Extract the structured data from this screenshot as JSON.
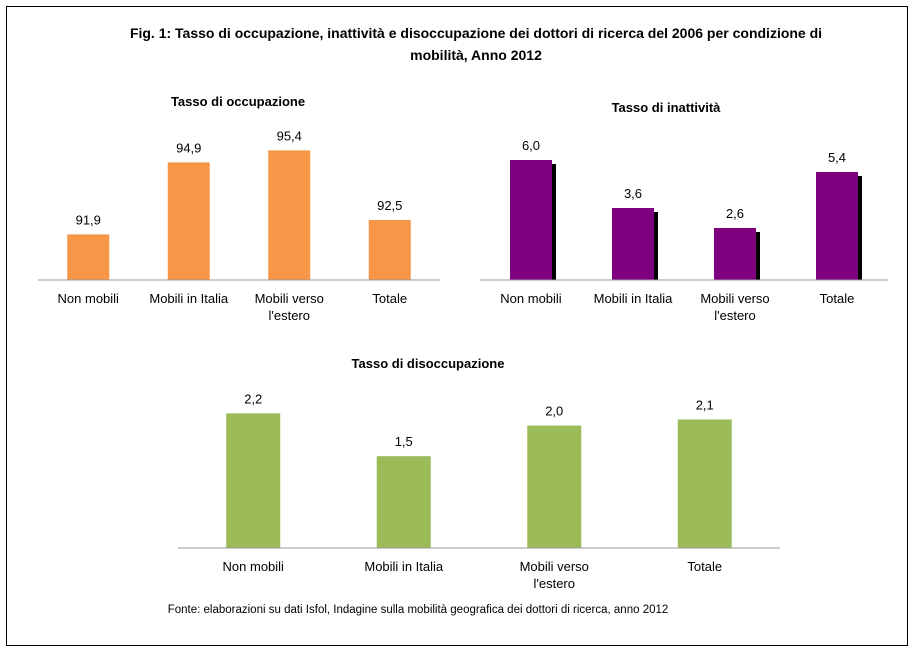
{
  "title": "Fig. 1: Tasso di occupazione, inattività e disoccupazione dei dottori di ricerca del 2006 per condizione di mobilità, Anno 2012",
  "source": "Fonte: elaborazioni su dati Isfol, Indagine sulla mobilità geografica dei dottori di ricerca, anno 2012",
  "chart_data": [
    {
      "type": "bar",
      "title": "Tasso di occupazione",
      "categories": [
        "Non mobili",
        "Mobili in Italia",
        "Mobili verso l'estero",
        "Totale"
      ],
      "values": [
        91.9,
        94.9,
        95.4,
        92.5
      ],
      "value_labels": [
        "91,9",
        "94,9",
        "95,4",
        "92,5"
      ],
      "color": "#f79646",
      "ylim": [
        90,
        96
      ]
    },
    {
      "type": "bar",
      "title": "Tasso di inattività",
      "categories": [
        "Non mobili",
        "Mobili in Italia",
        "Mobili verso l'estero",
        "Totale"
      ],
      "values": [
        6.0,
        3.6,
        2.6,
        5.4
      ],
      "value_labels": [
        "6,0",
        "3,6",
        "2,6",
        "5,4"
      ],
      "color": "#7f007f",
      "bar_shadow": true,
      "ylim": [
        0,
        7
      ]
    },
    {
      "type": "bar",
      "title": "Tasso di disoccupazione",
      "categories": [
        "Non mobili",
        "Mobili in Italia",
        "Mobili verso l'estero",
        "Totale"
      ],
      "values": [
        2.2,
        1.5,
        2.0,
        2.1
      ],
      "value_labels": [
        "2,2",
        "1,5",
        "2,0",
        "2,1"
      ],
      "color": "#9bbb59",
      "ylim": [
        0,
        2.5
      ]
    }
  ]
}
